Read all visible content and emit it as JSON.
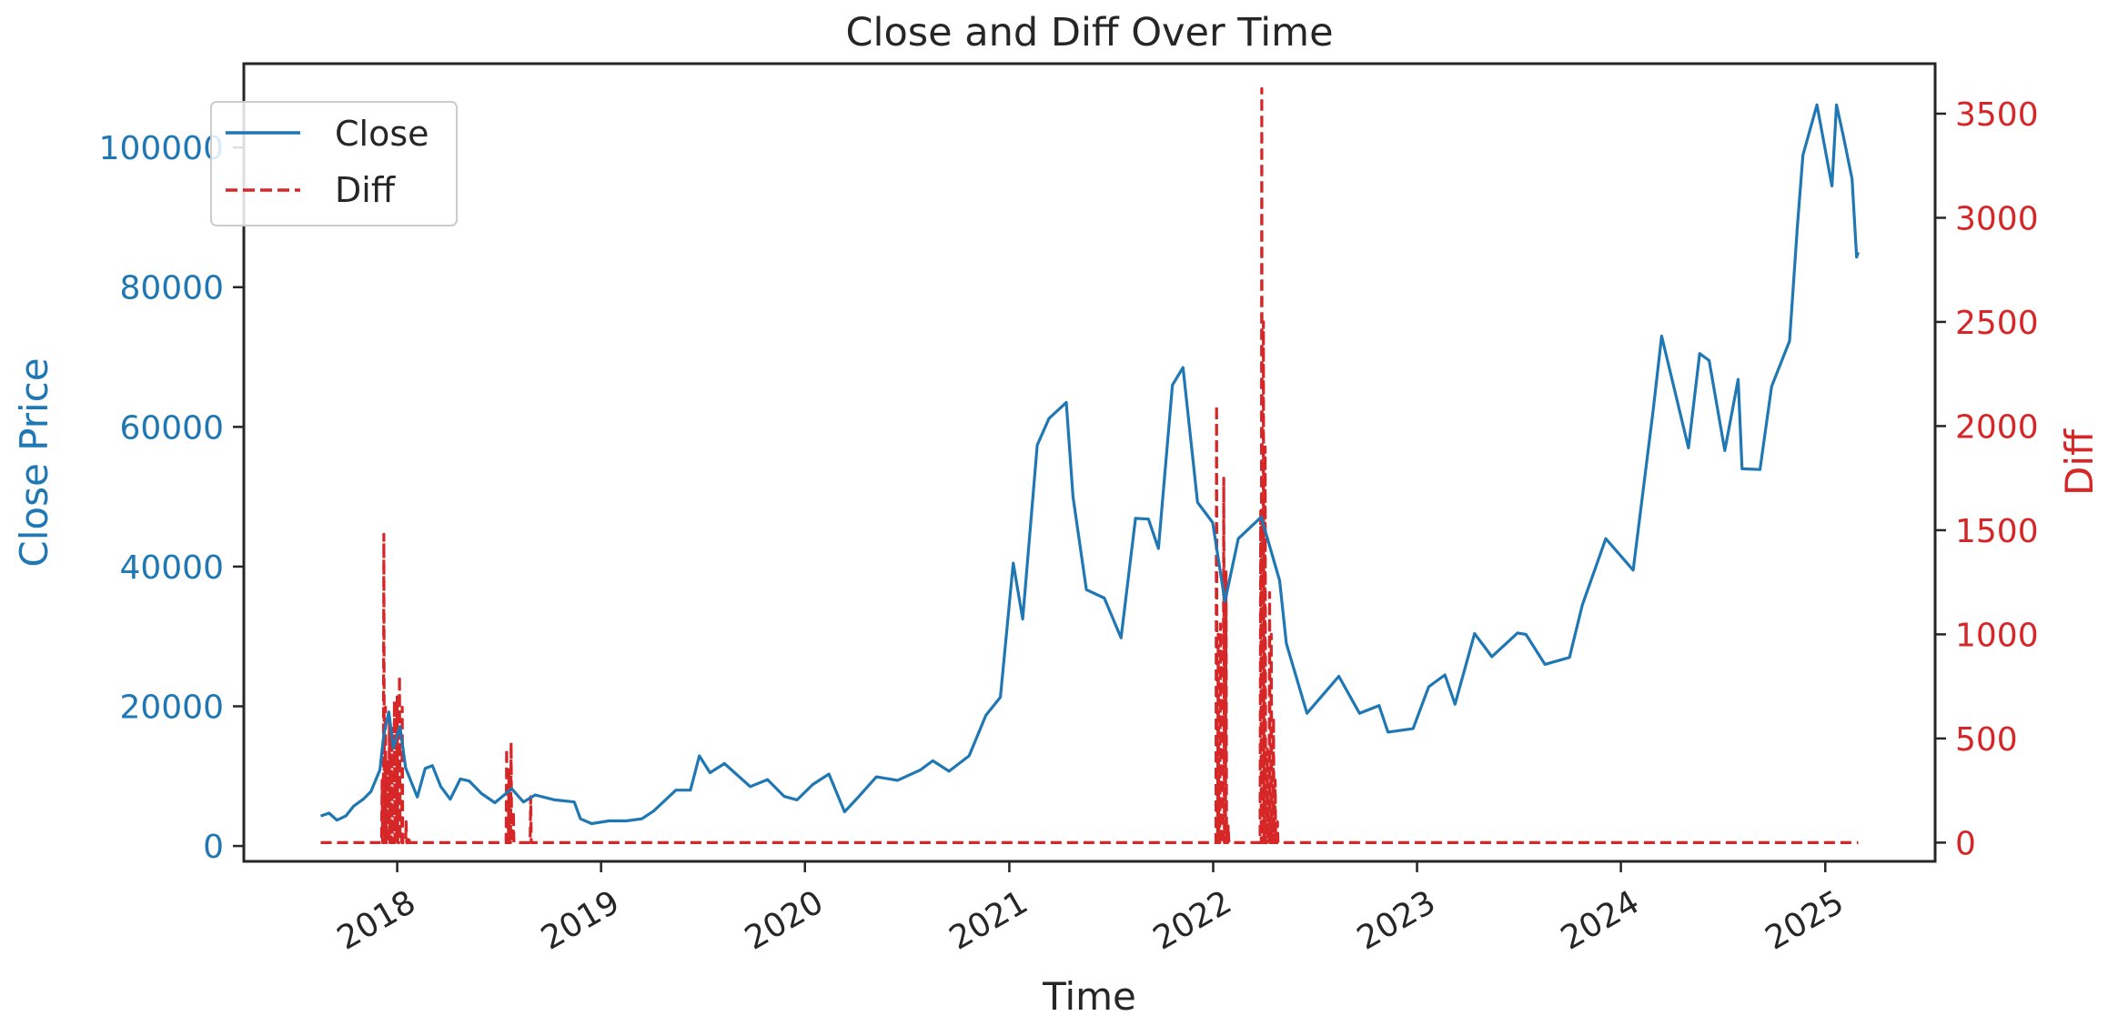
{
  "colors": {
    "close": "#1f77b4",
    "diff": "#d62728",
    "axis": "#262626",
    "legend_border": "#cccccc"
  },
  "chart_data": {
    "type": "line",
    "title": "Close and Diff Over Time",
    "xlabel": "Time",
    "ylabel_left": "Close Price",
    "ylabel_right": "Diff",
    "x_range": [
      "2017-08-17",
      "2025-03-01"
    ],
    "ylim_left": [
      -2200,
      112000
    ],
    "ylim_right": [
      -90,
      3740
    ],
    "x_ticks": [
      "2018",
      "2019",
      "2020",
      "2021",
      "2022",
      "2023",
      "2024",
      "2025"
    ],
    "y_ticks_left": [
      0,
      20000,
      40000,
      60000,
      80000,
      100000
    ],
    "y_ticks_right": [
      0,
      500,
      1000,
      1500,
      2000,
      2500,
      3000,
      3500
    ],
    "grid": false,
    "legend_placement": "upper-left",
    "series": [
      {
        "name": "Close",
        "axis": "left",
        "style": "solid",
        "points": [
          [
            "2017-08-17",
            4300
          ],
          [
            "2017-09-01",
            4700
          ],
          [
            "2017-09-15",
            3700
          ],
          [
            "2017-10-01",
            4300
          ],
          [
            "2017-10-15",
            5700
          ],
          [
            "2017-11-01",
            6700
          ],
          [
            "2017-11-15",
            7800
          ],
          [
            "2017-12-01",
            10900
          ],
          [
            "2017-12-08",
            16000
          ],
          [
            "2017-12-17",
            19200
          ],
          [
            "2017-12-25",
            14000
          ],
          [
            "2018-01-06",
            17100
          ],
          [
            "2018-01-16",
            11200
          ],
          [
            "2018-02-06",
            7000
          ],
          [
            "2018-02-20",
            11100
          ],
          [
            "2018-03-05",
            11500
          ],
          [
            "2018-03-20",
            8500
          ],
          [
            "2018-04-06",
            6700
          ],
          [
            "2018-04-24",
            9600
          ],
          [
            "2018-05-10",
            9300
          ],
          [
            "2018-06-01",
            7500
          ],
          [
            "2018-06-25",
            6200
          ],
          [
            "2018-07-25",
            8200
          ],
          [
            "2018-08-15",
            6300
          ],
          [
            "2018-09-05",
            7300
          ],
          [
            "2018-10-10",
            6600
          ],
          [
            "2018-11-14",
            6300
          ],
          [
            "2018-11-25",
            3900
          ],
          [
            "2018-12-15",
            3200
          ],
          [
            "2019-01-15",
            3600
          ],
          [
            "2019-02-15",
            3600
          ],
          [
            "2019-03-15",
            3900
          ],
          [
            "2019-04-05",
            5000
          ],
          [
            "2019-05-15",
            8000
          ],
          [
            "2019-06-10",
            8000
          ],
          [
            "2019-06-26",
            12900
          ],
          [
            "2019-07-15",
            10500
          ],
          [
            "2019-08-10",
            11800
          ],
          [
            "2019-09-25",
            8500
          ],
          [
            "2019-10-26",
            9500
          ],
          [
            "2019-11-25",
            7100
          ],
          [
            "2019-12-18",
            6600
          ],
          [
            "2020-01-15",
            8800
          ],
          [
            "2020-02-13",
            10300
          ],
          [
            "2020-03-12",
            4900
          ],
          [
            "2020-04-01",
            6600
          ],
          [
            "2020-05-08",
            9900
          ],
          [
            "2020-06-15",
            9400
          ],
          [
            "2020-07-26",
            10900
          ],
          [
            "2020-08-17",
            12200
          ],
          [
            "2020-09-15",
            10700
          ],
          [
            "2020-10-21",
            12900
          ],
          [
            "2020-11-20",
            18700
          ],
          [
            "2020-12-16",
            21300
          ],
          [
            "2021-01-08",
            40500
          ],
          [
            "2021-01-25",
            32500
          ],
          [
            "2021-02-20",
            57400
          ],
          [
            "2021-03-13",
            61200
          ],
          [
            "2021-04-13",
            63500
          ],
          [
            "2021-04-25",
            50000
          ],
          [
            "2021-05-19",
            36700
          ],
          [
            "2021-06-20",
            35500
          ],
          [
            "2021-07-20",
            29800
          ],
          [
            "2021-08-15",
            46900
          ],
          [
            "2021-09-07",
            46800
          ],
          [
            "2021-09-25",
            42600
          ],
          [
            "2021-10-20",
            66000
          ],
          [
            "2021-11-08",
            68500
          ],
          [
            "2021-12-04",
            49200
          ],
          [
            "2021-12-31",
            46300
          ],
          [
            "2022-01-22",
            35000
          ],
          [
            "2022-02-15",
            44000
          ],
          [
            "2022-03-28",
            47100
          ],
          [
            "2022-04-30",
            38000
          ],
          [
            "2022-05-12",
            29000
          ],
          [
            "2022-06-18",
            19000
          ],
          [
            "2022-08-14",
            24300
          ],
          [
            "2022-09-20",
            19000
          ],
          [
            "2022-10-25",
            20100
          ],
          [
            "2022-11-10",
            16300
          ],
          [
            "2022-12-25",
            16800
          ],
          [
            "2023-01-22",
            22800
          ],
          [
            "2023-02-20",
            24500
          ],
          [
            "2023-03-10",
            20300
          ],
          [
            "2023-04-14",
            30400
          ],
          [
            "2023-05-15",
            27100
          ],
          [
            "2023-06-30",
            30500
          ],
          [
            "2023-07-15",
            30300
          ],
          [
            "2023-08-18",
            26000
          ],
          [
            "2023-10-01",
            27000
          ],
          [
            "2023-10-24",
            34500
          ],
          [
            "2023-12-05",
            44000
          ],
          [
            "2024-01-23",
            39500
          ],
          [
            "2024-02-28",
            62500
          ],
          [
            "2024-03-14",
            73000
          ],
          [
            "2024-05-01",
            57000
          ],
          [
            "2024-05-21",
            70500
          ],
          [
            "2024-06-07",
            69500
          ],
          [
            "2024-07-05",
            56600
          ],
          [
            "2024-07-29",
            66800
          ],
          [
            "2024-08-05",
            54000
          ],
          [
            "2024-09-06",
            53900
          ],
          [
            "2024-09-27",
            65800
          ],
          [
            "2024-10-29",
            72300
          ],
          [
            "2024-11-12",
            88700
          ],
          [
            "2024-11-22",
            98900
          ],
          [
            "2024-12-17",
            106100
          ],
          [
            "2025-01-13",
            94500
          ],
          [
            "2025-01-21",
            106100
          ],
          [
            "2025-02-03",
            101400
          ],
          [
            "2025-02-18",
            95500
          ],
          [
            "2025-02-26",
            84300
          ],
          [
            "2025-03-01",
            85000
          ]
        ]
      },
      {
        "name": "Diff",
        "axis": "right",
        "style": "dashed",
        "baseline": 0,
        "spikes": [
          {
            "date": "2017-12-05",
            "value": 300
          },
          {
            "date": "2017-12-08",
            "value": 1480
          },
          {
            "date": "2017-12-11",
            "value": 650
          },
          {
            "date": "2017-12-14",
            "value": 400
          },
          {
            "date": "2017-12-18",
            "value": 600
          },
          {
            "date": "2017-12-22",
            "value": 550
          },
          {
            "date": "2017-12-27",
            "value": 680
          },
          {
            "date": "2018-01-01",
            "value": 700
          },
          {
            "date": "2018-01-05",
            "value": 800
          },
          {
            "date": "2018-01-10",
            "value": 650
          },
          {
            "date": "2018-01-17",
            "value": 100
          },
          {
            "date": "2018-01-22",
            "value": 30
          },
          {
            "date": "2018-07-16",
            "value": 450
          },
          {
            "date": "2018-07-20",
            "value": 350
          },
          {
            "date": "2018-07-24",
            "value": 480
          },
          {
            "date": "2018-07-28",
            "value": 150
          },
          {
            "date": "2018-08-28",
            "value": 220
          },
          {
            "date": "2022-01-07",
            "value": 2100
          },
          {
            "date": "2022-01-10",
            "value": 1000
          },
          {
            "date": "2022-01-14",
            "value": 1050
          },
          {
            "date": "2022-01-20",
            "value": 1750
          },
          {
            "date": "2022-01-24",
            "value": 1300
          },
          {
            "date": "2022-01-28",
            "value": 80
          },
          {
            "date": "2022-03-27",
            "value": 1600
          },
          {
            "date": "2022-03-29",
            "value": 3620
          },
          {
            "date": "2022-04-01",
            "value": 2500
          },
          {
            "date": "2022-04-04",
            "value": 1900
          },
          {
            "date": "2022-04-08",
            "value": 450
          },
          {
            "date": "2022-04-12",
            "value": 1200
          },
          {
            "date": "2022-04-15",
            "value": 1000
          },
          {
            "date": "2022-04-19",
            "value": 600
          },
          {
            "date": "2022-04-22",
            "value": 300
          },
          {
            "date": "2022-04-26",
            "value": 100
          }
        ]
      }
    ]
  }
}
